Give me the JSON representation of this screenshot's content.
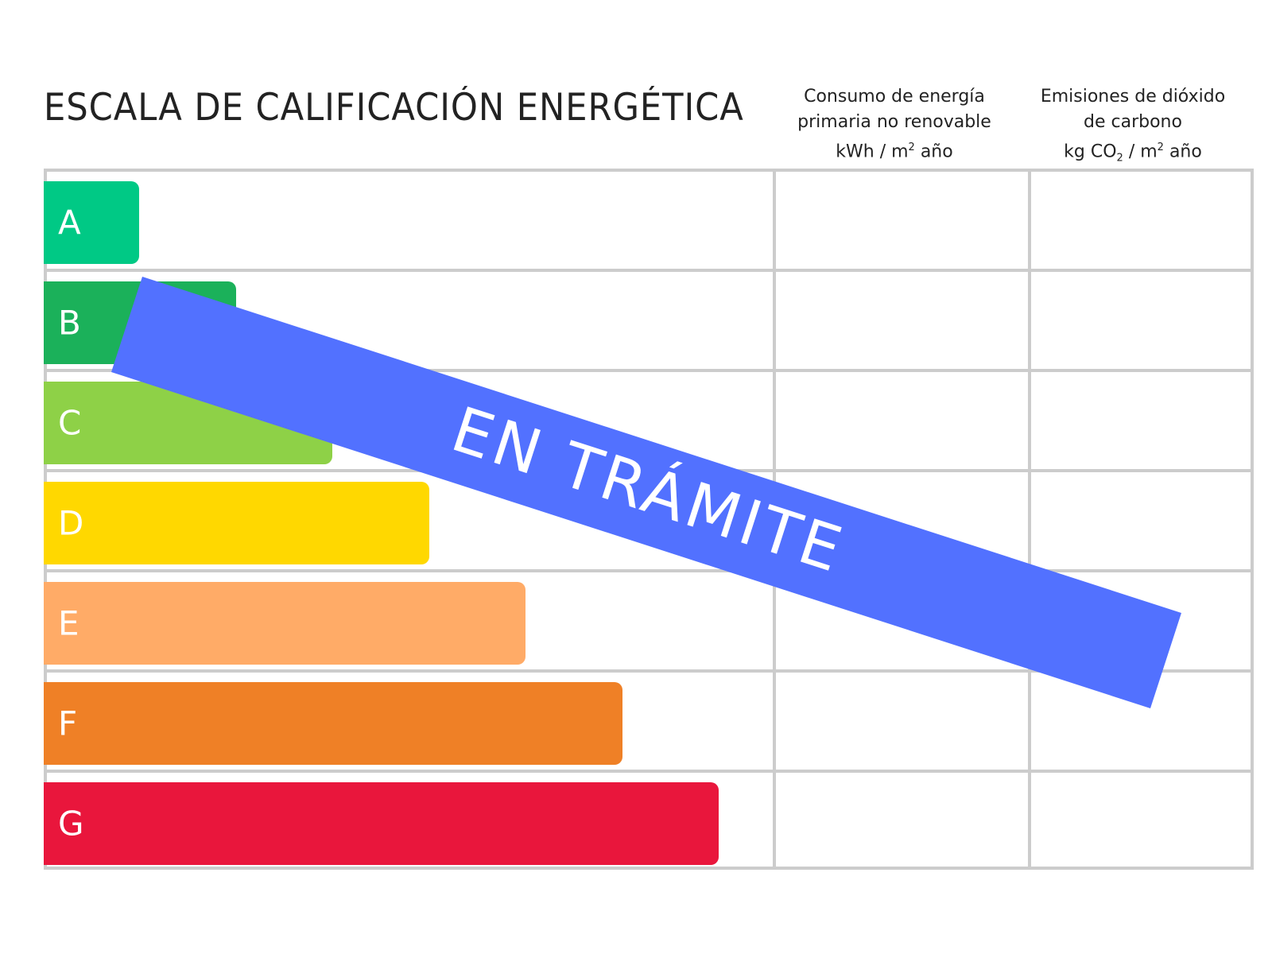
{
  "title": "ESCALA DE CALIFICACIÓN ENERGÉTICA",
  "columns": [
    {
      "lines": [
        "Consumo de energía",
        "primaria no renovable"
      ],
      "unit_prefix": "kWh / m",
      "unit_sup": "2",
      "unit_suffix": " año"
    },
    {
      "lines": [
        "Emisiones de dióxido",
        "de carbono"
      ],
      "unit_prefix": "kg CO",
      "unit_sub": "2",
      "unit_mid": " / m",
      "unit_sup": "2",
      "unit_suffix": " año"
    }
  ],
  "ratings": [
    {
      "letter": "A",
      "color": "#00c985"
    },
    {
      "letter": "B",
      "color": "#1bb15a"
    },
    {
      "letter": "C",
      "color": "#8ed147"
    },
    {
      "letter": "D",
      "color": "#ffd800"
    },
    {
      "letter": "E",
      "color": "#ffab67"
    },
    {
      "letter": "F",
      "color": "#ef8026"
    },
    {
      "letter": "G",
      "color": "#e9163c"
    }
  ],
  "banner": {
    "text": "EN TRÁMITE",
    "color": "#5271ff"
  }
}
